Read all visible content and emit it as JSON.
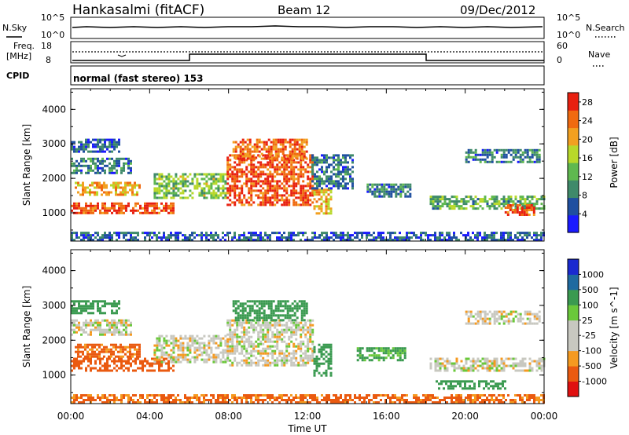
{
  "header": {
    "station": "Hankasalmi (fitACF)",
    "beam": "Beam 12",
    "date": "09/Dec/2012"
  },
  "noise_panel": {
    "left_label": "N.Sky",
    "right_label": "N.Search",
    "left_ticks": [
      "10^5",
      "10^0"
    ],
    "right_ticks": [
      "10^5",
      "10^0"
    ]
  },
  "freq_panel": {
    "left_label_1": "Freq.",
    "left_label_2": "[MHz]",
    "right_label": "Nave",
    "left_ticks": [
      "18",
      "8"
    ],
    "right_ticks": [
      "60",
      "0"
    ],
    "cpid_label": "CPID",
    "cpid_value": "normal (fast stereo) 153"
  },
  "colors": {
    "power_scale": [
      "#1a1aff",
      "#1f4fa0",
      "#3f8a6a",
      "#5fb84f",
      "#b8d82a",
      "#f2a020",
      "#f06a10",
      "#e82010"
    ],
    "velocity_scale": [
      "#e01010",
      "#ea5a10",
      "#f59a20",
      "#c8c8c0",
      "#c8c8c0",
      "#6ac83a",
      "#3a9a50",
      "#1e6aa0",
      "#1a2ad0"
    ]
  },
  "chart_data": [
    {
      "type": "heatmap",
      "title": "",
      "xlabel": "",
      "ylabel": "Slant Range [km]",
      "x_ticks": [
        "00:00",
        "04:00",
        "08:00",
        "12:00",
        "16:00",
        "20:00",
        "00:00"
      ],
      "y_ticks": [
        "1000",
        "2000",
        "3000",
        "4000"
      ],
      "xlim_hours": [
        0,
        24
      ],
      "ylim_km": [
        180,
        4600
      ],
      "colorbar": {
        "label": "Power [dB]",
        "ticks": [
          "28",
          "24",
          "20",
          "16",
          "12",
          "8",
          "4"
        ],
        "range": [
          0,
          30
        ]
      },
      "regions": [
        {
          "t": [
            0.0,
            5.2
          ],
          "r": [
            1000,
            1300
          ],
          "v": 26
        },
        {
          "t": [
            0.2,
            3.5
          ],
          "r": [
            1500,
            1900
          ],
          "v": 20
        },
        {
          "t": [
            0.0,
            3.0
          ],
          "r": [
            2150,
            2600
          ],
          "v": 8
        },
        {
          "t": [
            0.0,
            2.5
          ],
          "r": [
            2750,
            3150
          ],
          "v": 6
        },
        {
          "t": [
            4.2,
            7.8
          ],
          "r": [
            1450,
            2150
          ],
          "v": 14
        },
        {
          "t": [
            7.9,
            12.3
          ],
          "r": [
            1250,
            2700
          ],
          "v": 26
        },
        {
          "t": [
            8.2,
            12.0
          ],
          "r": [
            2600,
            3150
          ],
          "v": 24
        },
        {
          "t": [
            12.3,
            13.2
          ],
          "r": [
            1000,
            1700
          ],
          "v": 20
        },
        {
          "t": [
            12.2,
            14.3
          ],
          "r": [
            1700,
            2700
          ],
          "v": 8
        },
        {
          "t": [
            15.0,
            17.2
          ],
          "r": [
            1500,
            1850
          ],
          "v": 8
        },
        {
          "t": [
            18.2,
            24.0
          ],
          "r": [
            1100,
            1500
          ],
          "v": 12
        },
        {
          "t": [
            22.0,
            23.5
          ],
          "r": [
            950,
            1250
          ],
          "v": 26
        },
        {
          "t": [
            20.0,
            23.8
          ],
          "r": [
            2500,
            2850
          ],
          "v": 8
        },
        {
          "t": [
            0.0,
            24.0
          ],
          "r": [
            200,
            450
          ],
          "v": 6
        }
      ]
    },
    {
      "type": "heatmap",
      "title": "",
      "xlabel": "Time UT",
      "ylabel": "Slant Range [km]",
      "x_ticks": [
        "00:00",
        "04:00",
        "08:00",
        "12:00",
        "16:00",
        "20:00",
        "00:00"
      ],
      "y_ticks": [
        "1000",
        "2000",
        "3000",
        "4000"
      ],
      "xlim_hours": [
        0,
        24
      ],
      "ylim_km": [
        180,
        4600
      ],
      "colorbar": {
        "label": "Velocity [m s^-1]",
        "ticks": [
          "1000",
          "500",
          "100",
          "25",
          "-25",
          "-100",
          "-500",
          "-1000"
        ],
        "range": [
          -1000,
          1000
        ]
      },
      "regions": [
        {
          "t": [
            0.0,
            5.2
          ],
          "r": [
            1100,
            1500
          ],
          "v": -200
        },
        {
          "t": [
            0.2,
            3.5
          ],
          "r": [
            1500,
            1900
          ],
          "v": -120
        },
        {
          "t": [
            0.0,
            3.0
          ],
          "r": [
            2150,
            2600
          ],
          "v": 0
        },
        {
          "t": [
            0.0,
            2.5
          ],
          "r": [
            2750,
            3150
          ],
          "v": 150
        },
        {
          "t": [
            4.2,
            7.8
          ],
          "r": [
            1400,
            2150
          ],
          "v": 0
        },
        {
          "t": [
            7.9,
            12.3
          ],
          "r": [
            1250,
            2600
          ],
          "v": 0
        },
        {
          "t": [
            8.2,
            12.0
          ],
          "r": [
            2600,
            3150
          ],
          "v": 200
        },
        {
          "t": [
            12.3,
            13.2
          ],
          "r": [
            1000,
            1900
          ],
          "v": 150
        },
        {
          "t": [
            14.5,
            17.0
          ],
          "r": [
            1450,
            1800
          ],
          "v": 120
        },
        {
          "t": [
            18.2,
            24.0
          ],
          "r": [
            1100,
            1500
          ],
          "v": 0
        },
        {
          "t": [
            20.0,
            23.8
          ],
          "r": [
            2500,
            2850
          ],
          "v": 0
        },
        {
          "t": [
            18.5,
            22.0
          ],
          "r": [
            600,
            850
          ],
          "v": 150
        },
        {
          "t": [
            0.0,
            24.0
          ],
          "r": [
            200,
            450
          ],
          "v": -120
        }
      ]
    }
  ]
}
